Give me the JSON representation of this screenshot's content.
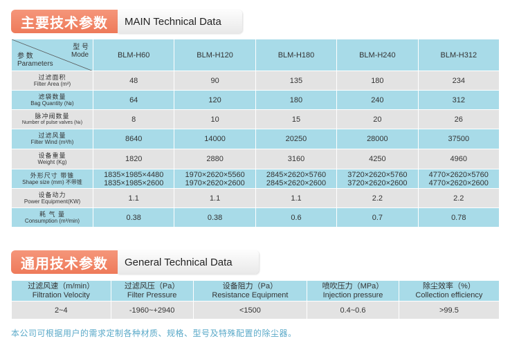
{
  "section1": {
    "title_cn": "主要技术参数",
    "title_en": "MAIN Technical Data"
  },
  "main_table": {
    "corner": {
      "model_cn": "型 号",
      "model_en": "Mode",
      "param_cn": "参 数",
      "param_en": "Parameters"
    },
    "models": [
      "BLM-H60",
      "BLM-H120",
      "BLM-H180",
      "BLM-H240",
      "BLM-H312"
    ],
    "rows": [
      {
        "cn": "过滤面积",
        "en": "Filter Area (m²)",
        "values": [
          "48",
          "90",
          "135",
          "180",
          "234"
        ]
      },
      {
        "cn": "滤袋数量",
        "en": "Bag Quantity (№)",
        "values": [
          "64",
          "120",
          "180",
          "240",
          "312"
        ]
      },
      {
        "cn": "脉冲阀数量",
        "en": "Number of pulse valves (№)",
        "values": [
          "8",
          "10",
          "15",
          "20",
          "26"
        ]
      },
      {
        "cn": "过滤风量",
        "en": "Filter Wind (m³/h)",
        "values": [
          "8640",
          "14000",
          "20250",
          "28000",
          "37500"
        ]
      },
      {
        "cn": "设备重量",
        "en": "Weight  (Kg)",
        "values": [
          "1820",
          "2880",
          "3160",
          "4250",
          "4960"
        ]
      }
    ],
    "shape_row": {
      "cn": "外形尺寸  带锥",
      "en": "Shape size (mm)  不带锥",
      "values": [
        [
          "1835×1985×4480",
          "1835×1985×2600"
        ],
        [
          "1970×2620×5560",
          "1970×2620×2600"
        ],
        [
          "2845×2620×5760",
          "2845×2620×2600"
        ],
        [
          "3720×2620×5760",
          "3720×2620×2600"
        ],
        [
          "4770×2620×5760",
          "4770×2620×2600"
        ]
      ]
    },
    "rows_after": [
      {
        "cn": "设备动力",
        "en": "Power Equipment(KW)",
        "values": [
          "1.1",
          "1.1",
          "1.1",
          "2.2",
          "2.2"
        ]
      },
      {
        "cn": "耗 气 量",
        "en": "Consumption (m³/min)",
        "values": [
          "0.38",
          "0.38",
          "0.6",
          "0.7",
          "0.78"
        ]
      }
    ]
  },
  "section2": {
    "title_cn": "通用技术参数",
    "title_en": "General  Technical  Data"
  },
  "general_table": {
    "headers": [
      {
        "cn": "过滤风速（m/min）",
        "en": "Filtration Velocity"
      },
      {
        "cn": "过滤风压（Pa）",
        "en": "Filter Pressure"
      },
      {
        "cn": "设备阻力（Pa）",
        "en": "Resistance Equipment"
      },
      {
        "cn": "喷吹压力（MPa）",
        "en": "Injection pressure"
      },
      {
        "cn": "除尘效率（%）",
        "en": "Collection efficiency"
      }
    ],
    "values": [
      "2~4",
      "-1960~+2940",
      "<1500",
      "0.4~0.6",
      ">99.5"
    ]
  },
  "footer_note": "本公司可根据用户的需求定制各种材质、规格、型号及特殊配置的除尘器。",
  "colors": {
    "accent": "#ee7a5a",
    "table_blue": "#a8dbe8",
    "table_gray": "#e3e3e3",
    "note": "#5aa9c8"
  }
}
